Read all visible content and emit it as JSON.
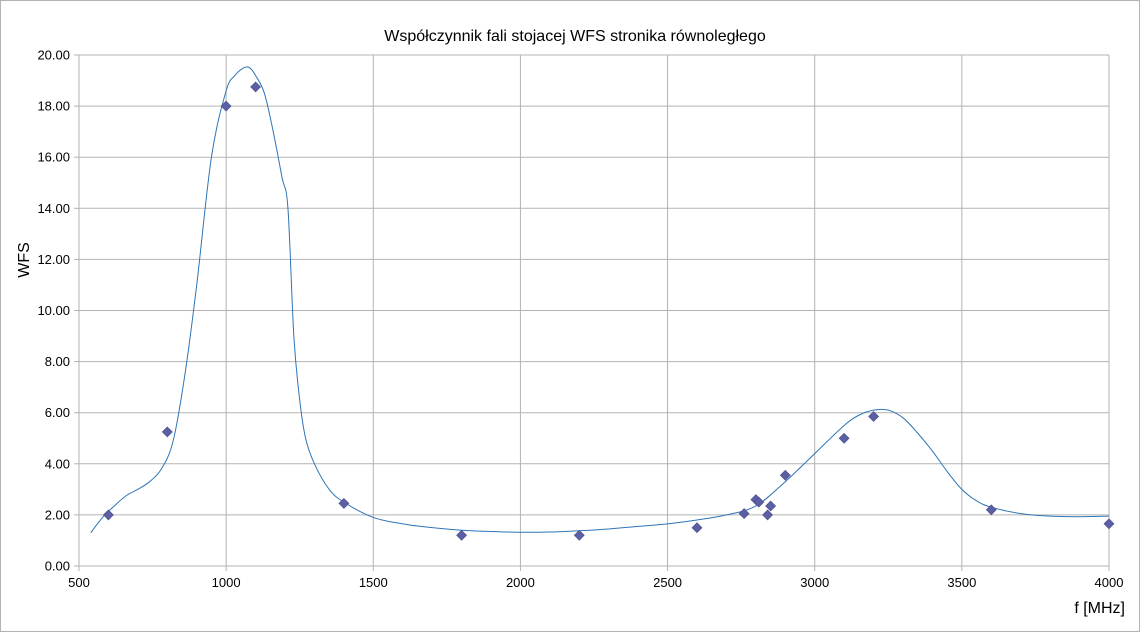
{
  "chart_data": {
    "type": "scatter",
    "title": "Współczynnik fali stojacej WFS stronika równoległego",
    "xlabel": "f [MHz]",
    "ylabel": "WFS",
    "xlim": [
      500,
      4000
    ],
    "ylim": [
      0,
      20
    ],
    "x_ticks": [
      500,
      1000,
      1500,
      2000,
      2500,
      3000,
      3500,
      4000
    ],
    "x_tick_labels": [
      "500",
      "1000",
      "1500",
      "2000",
      "2500",
      "3000",
      "3500",
      "4000"
    ],
    "y_ticks": [
      0,
      2,
      4,
      6,
      8,
      10,
      12,
      14,
      16,
      18,
      20
    ],
    "y_tick_labels": [
      "0.00",
      "2.00",
      "4.00",
      "6.00",
      "8.00",
      "10.00",
      "12.00",
      "14.00",
      "16.00",
      "18.00",
      "20.00"
    ],
    "grid": true,
    "legend": "none",
    "series": [
      {
        "kind": "points",
        "marker": "diamond",
        "color": "#5b5fa3",
        "x": [
          600,
          800,
          1000,
          1100,
          1400,
          1800,
          2200,
          2600,
          2760,
          2800,
          2810,
          2840,
          2850,
          2900,
          3100,
          3200,
          3600,
          4000
        ],
        "y": [
          2.0,
          5.25,
          18.0,
          18.75,
          2.45,
          1.2,
          1.2,
          1.5,
          2.05,
          2.6,
          2.5,
          2.0,
          2.35,
          3.55,
          5.0,
          5.85,
          2.2,
          1.65
        ]
      },
      {
        "kind": "trend-curve",
        "color": "#2e75b6",
        "x": [
          540,
          580,
          620,
          660,
          700,
          740,
          780,
          820,
          860,
          900,
          950,
          1000,
          1030,
          1060,
          1080,
          1100,
          1130,
          1160,
          1190,
          1210,
          1230,
          1250,
          1270,
          1300,
          1350,
          1400,
          1500,
          1600,
          1700,
          1800,
          1900,
          2000,
          2100,
          2200,
          2300,
          2400,
          2500,
          2600,
          2700,
          2800,
          2900,
          3000,
          3100,
          3150,
          3200,
          3250,
          3300,
          3350,
          3400,
          3450,
          3500,
          3550,
          3600,
          3700,
          3800,
          3900,
          4000
        ],
        "y": [
          1.3,
          1.9,
          2.35,
          2.75,
          3.0,
          3.3,
          3.8,
          4.9,
          7.5,
          11.0,
          16.0,
          18.6,
          19.2,
          19.5,
          19.5,
          19.2,
          18.5,
          17.0,
          15.2,
          14.0,
          9.0,
          6.5,
          5.0,
          4.0,
          3.0,
          2.5,
          1.9,
          1.65,
          1.5,
          1.4,
          1.35,
          1.32,
          1.33,
          1.38,
          1.45,
          1.55,
          1.65,
          1.8,
          2.0,
          2.35,
          3.3,
          4.4,
          5.5,
          5.9,
          6.1,
          6.1,
          5.8,
          5.2,
          4.5,
          3.7,
          3.0,
          2.55,
          2.3,
          2.05,
          1.95,
          1.93,
          1.95
        ]
      }
    ]
  }
}
